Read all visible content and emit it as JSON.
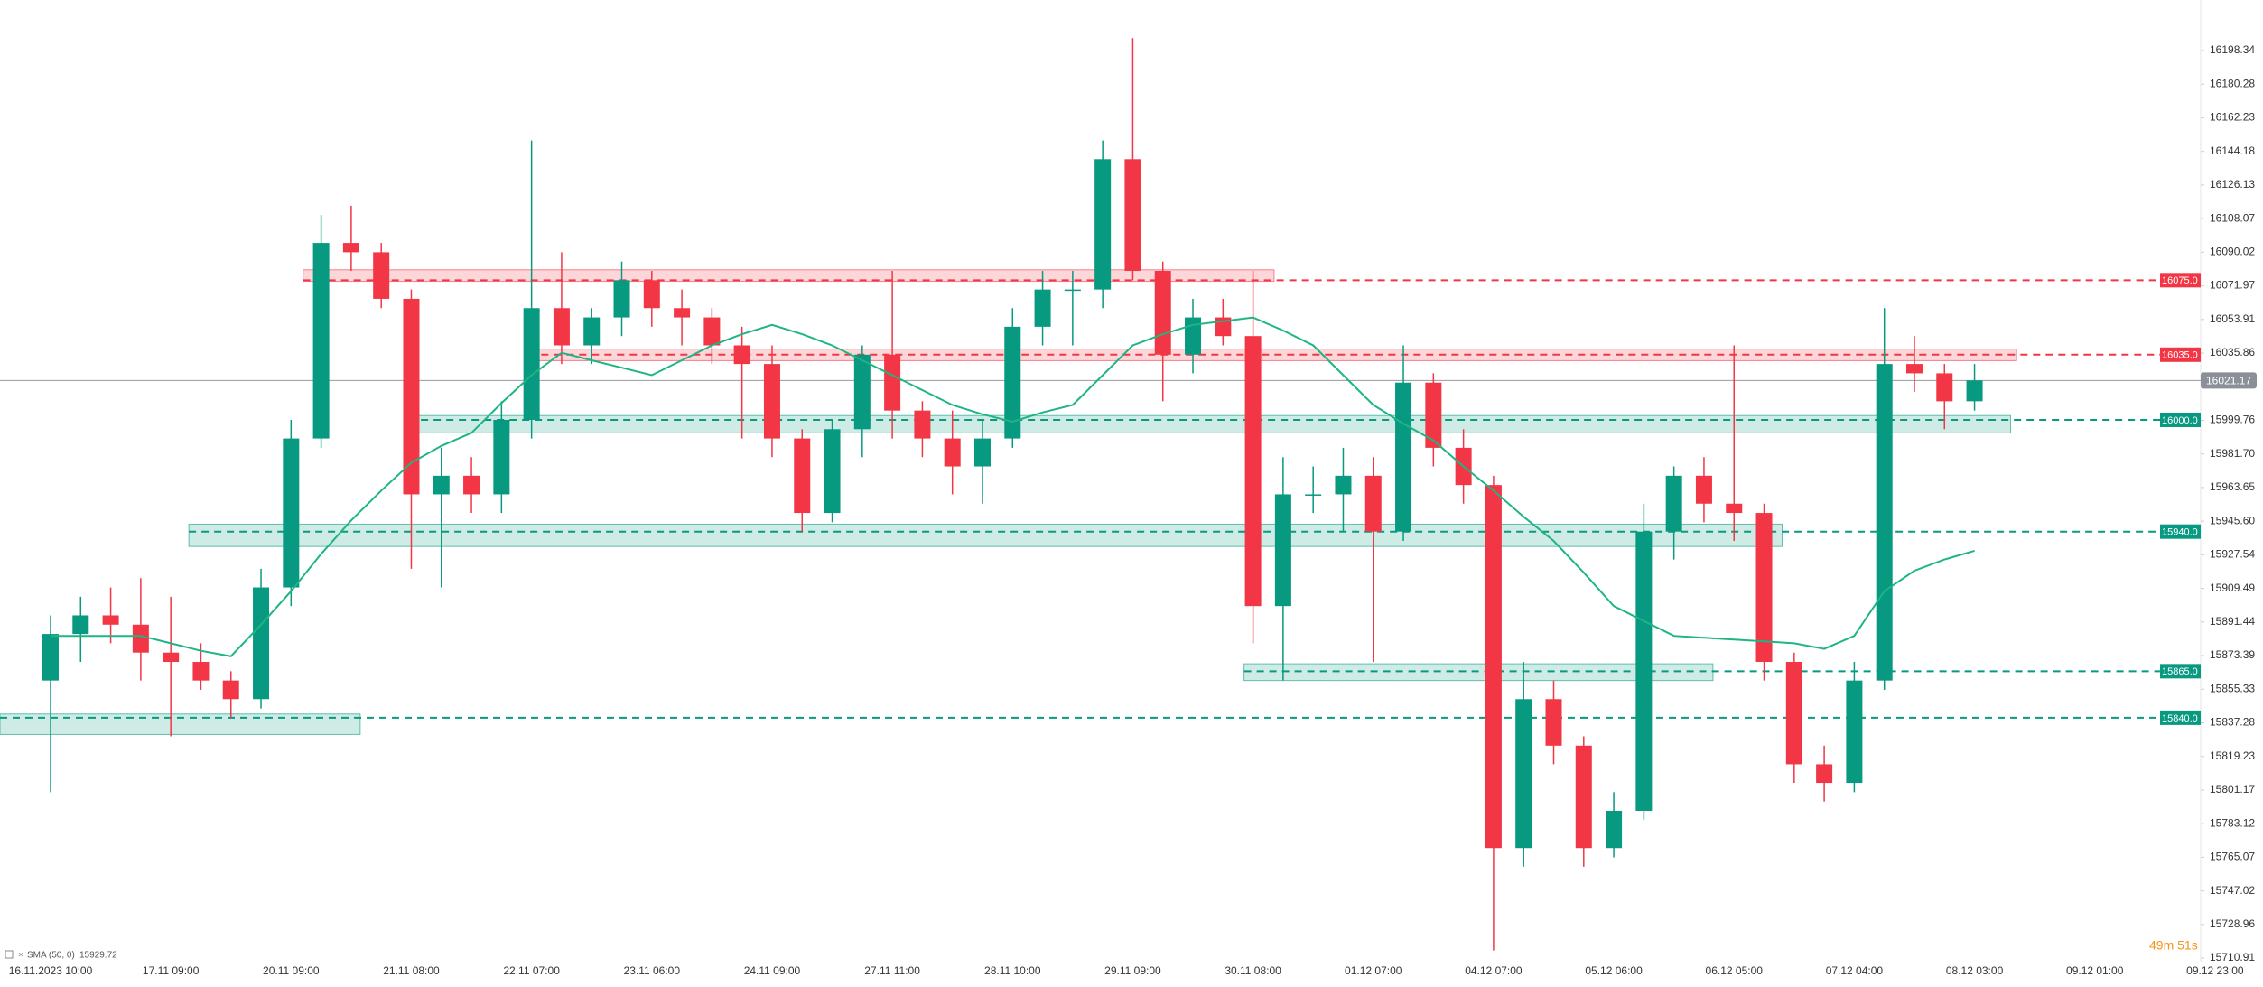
{
  "chart_data": {
    "type": "candlestick",
    "categories": [
      "16.11.2023  10:00",
      null,
      null,
      null,
      "17.11  09:00",
      null,
      null,
      null,
      "20.11  09:00",
      null,
      null,
      null,
      "21.11  08:00",
      null,
      null,
      null,
      "22.11  07:00",
      null,
      null,
      null,
      "23.11  06:00",
      null,
      null,
      null,
      "24.11  09:00",
      null,
      null,
      null,
      "27.11  11:00",
      null,
      null,
      null,
      "28.11  10:00",
      null,
      null,
      null,
      "29.11  09:00",
      null,
      null,
      null,
      "30.11  08:00",
      null,
      null,
      null,
      "01.12  07:00",
      null,
      null,
      null,
      "04.12  07:00",
      null,
      null,
      null,
      "05.12  06:00",
      null,
      null,
      null,
      "06.12  05:00",
      null,
      null,
      null,
      "07.12  04:00",
      null,
      null,
      null,
      "08.12  03:00",
      null,
      null,
      null,
      "09.12  01:00",
      null,
      null,
      null,
      "09.12  23:00"
    ],
    "open": [
      15860,
      15885,
      15895,
      15890,
      15875,
      15870,
      15860,
      15850,
      15910,
      15990,
      16095,
      16090,
      16065,
      15960,
      15970,
      15960,
      16000,
      16060,
      16040,
      16055,
      16075,
      16060,
      16055,
      16040,
      16030,
      15990,
      15950,
      15995,
      16035,
      16005,
      15990,
      15975,
      15990,
      16050,
      16070,
      16070,
      16140,
      16080,
      16035,
      16055,
      16045,
      15900,
      15960,
      15960,
      15970,
      15940,
      16020,
      15985,
      15965,
      15770,
      15850,
      15825,
      15770,
      15790,
      15940,
      15970,
      15955,
      15950,
      15870,
      15815,
      15805,
      15860,
      16030,
      16025,
      16010,
      null,
      null,
      null,
      null,
      null,
      null,
      null,
      null
    ],
    "high": [
      15895,
      15905,
      15910,
      15915,
      15905,
      15880,
      15865,
      15920,
      16000,
      16110,
      16115,
      16095,
      16070,
      15985,
      15980,
      16010,
      16150,
      16090,
      16060,
      16085,
      16080,
      16070,
      16060,
      16050,
      16040,
      15995,
      16000,
      16040,
      16080,
      16010,
      16005,
      16000,
      16060,
      16080,
      16080,
      16150,
      16205,
      16085,
      16065,
      16065,
      16080,
      15980,
      15975,
      15985,
      15980,
      16040,
      16025,
      15995,
      15970,
      15870,
      15860,
      15830,
      15800,
      15955,
      15975,
      15980,
      16040,
      15955,
      15875,
      15825,
      15870,
      16060,
      16045,
      16030,
      16030,
      null,
      null,
      null,
      null,
      null,
      null,
      null,
      null
    ],
    "low": [
      15800,
      15870,
      15880,
      15860,
      15830,
      15855,
      15840,
      15845,
      15900,
      15985,
      16080,
      16060,
      15920,
      15910,
      15950,
      15950,
      15990,
      16030,
      16030,
      16045,
      16050,
      16040,
      16030,
      15990,
      15980,
      15940,
      15945,
      15980,
      15990,
      15980,
      15960,
      15955,
      15985,
      16040,
      16040,
      16060,
      16075,
      16010,
      16025,
      16040,
      15880,
      15860,
      15950,
      15940,
      15870,
      15935,
      15975,
      15955,
      15715,
      15760,
      15815,
      15760,
      15765,
      15785,
      15925,
      15945,
      15935,
      15860,
      15805,
      15795,
      15800,
      15855,
      16015,
      15995,
      16005,
      null,
      null,
      null,
      null,
      null,
      null,
      null,
      null
    ],
    "close": [
      15885,
      15895,
      15890,
      15875,
      15870,
      15860,
      15850,
      15910,
      15990,
      16095,
      16090,
      16065,
      15960,
      15970,
      15960,
      16000,
      16060,
      16040,
      16055,
      16075,
      16060,
      16055,
      16040,
      16030,
      15990,
      15950,
      15995,
      16035,
      16005,
      15990,
      15975,
      15990,
      16050,
      16070,
      16070,
      16140,
      16080,
      16035,
      16055,
      16045,
      15900,
      15960,
      15960,
      15970,
      15940,
      16020,
      15985,
      15965,
      15770,
      15850,
      15825,
      15770,
      15790,
      15940,
      15970,
      15955,
      15950,
      15870,
      15815,
      15805,
      15860,
      16030,
      16025,
      16010,
      16021.17,
      null,
      null,
      null,
      null,
      null,
      null,
      null,
      null
    ],
    "up_color": "#089981",
    "down_color": "#f23645",
    "sma": {
      "name": "SMA (50, 0)",
      "color": "#1db584",
      "values": [
        15884,
        15884,
        15884,
        15884,
        15880,
        15876,
        15873,
        15890,
        15908,
        15928,
        15946,
        15962,
        15977,
        15986,
        15993,
        16009,
        16024,
        16036,
        16032,
        16028,
        16024,
        16032,
        16040,
        16046,
        16051,
        16046,
        16040,
        16032,
        16024,
        16016,
        16008,
        16003,
        15999,
        16004,
        16008,
        16024,
        16040,
        16046,
        16051,
        16053,
        16055,
        16048,
        16040,
        16024,
        16008,
        15998,
        15989,
        15975,
        15962,
        15948,
        15935,
        15918,
        15900,
        15892,
        15884,
        15883,
        15882,
        15881,
        15880,
        15877,
        15884,
        15908,
        15919,
        15925,
        15929.72,
        null,
        null,
        null,
        null,
        null,
        null,
        null,
        null
      ]
    },
    "zones": [
      {
        "level": 16075,
        "level_label": "16075.0",
        "low": 16074.4,
        "high": 16080.6,
        "start": 8.4,
        "end": 40.7,
        "color": "#f23645"
      },
      {
        "level": 16035,
        "level_label": "16035.0",
        "low": 16031.8,
        "high": 16038,
        "start": 15.9,
        "end": 65.4,
        "color": "#f23645"
      },
      {
        "level": 16000,
        "level_label": "16000.0",
        "low": 15993,
        "high": 16002.3,
        "start": 11.9,
        "end": 65.2,
        "color": "#089981"
      },
      {
        "level": 15940,
        "level_label": "15940.0",
        "low": 15932,
        "high": 15944,
        "start": 4.6,
        "end": 57.6,
        "color": "#089981"
      },
      {
        "level": 15865,
        "level_label": "15865.0",
        "low": 15860,
        "high": 15869,
        "start": 39.7,
        "end": 55.3,
        "color": "#089981"
      },
      {
        "level": 15840,
        "level_label": "15840.0",
        "low": 15831,
        "high": 15842,
        "start": -1.7,
        "end": 10.3,
        "color": "#089981"
      }
    ],
    "ylim": [
      15709,
      16225.5
    ],
    "yticks": [
      16198.34,
      16180.28,
      16162.23,
      16144.18,
      16126.13,
      16108.07,
      16090.02,
      16071.97,
      16053.91,
      16035.86,
      15999.76,
      {
        "value": 15981.7,
        "label": "15981.70"
      },
      15963.65,
      {
        "value": 15945.6,
        "label": "15945.60"
      },
      15927.54,
      15909.49,
      15891.44,
      15873.39,
      15855.33,
      15837.28,
      15819.23,
      15801.17,
      15783.12,
      15765.07,
      15747.02,
      15728.96,
      15710.91
    ],
    "timer": "49m 51s"
  }
}
